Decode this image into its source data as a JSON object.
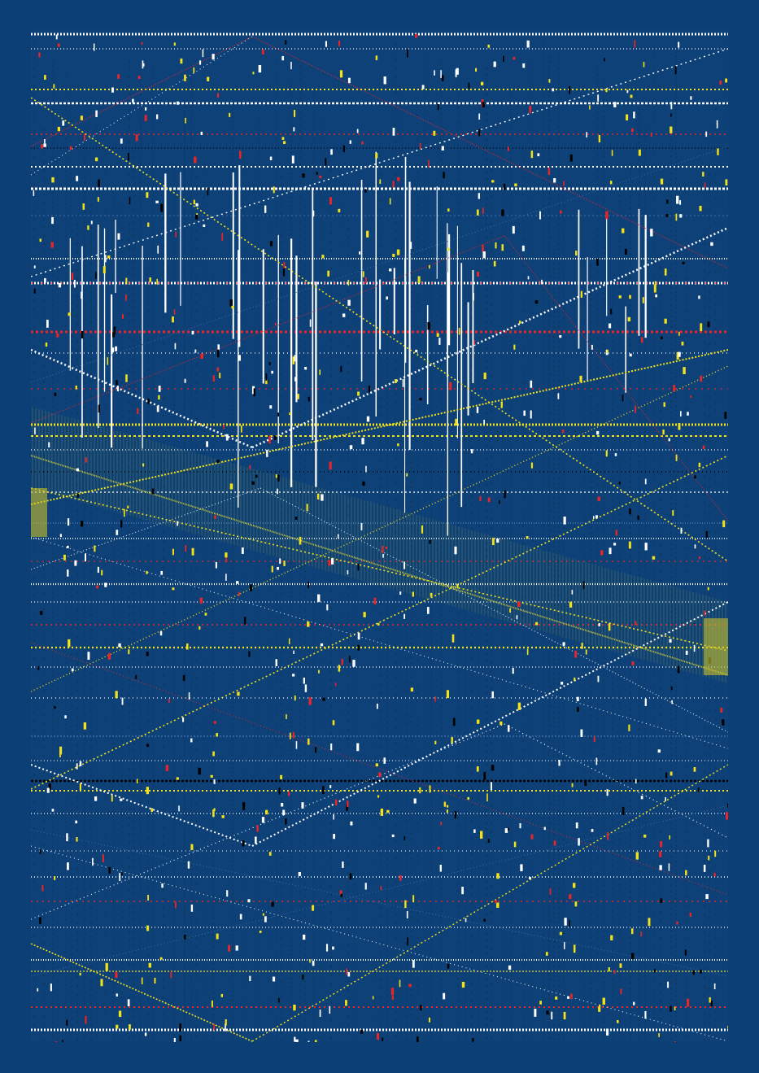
{
  "artwork": {
    "kind": "generative-pattern",
    "colors": {
      "background": "#0b3f75",
      "field": "#0d4177",
      "white": "#ffffff",
      "yellow": "#f3e21b",
      "red": "#e8262a",
      "black": "#000000",
      "olive": "#c7c23a",
      "steel": "#3f6ea3"
    }
  }
}
